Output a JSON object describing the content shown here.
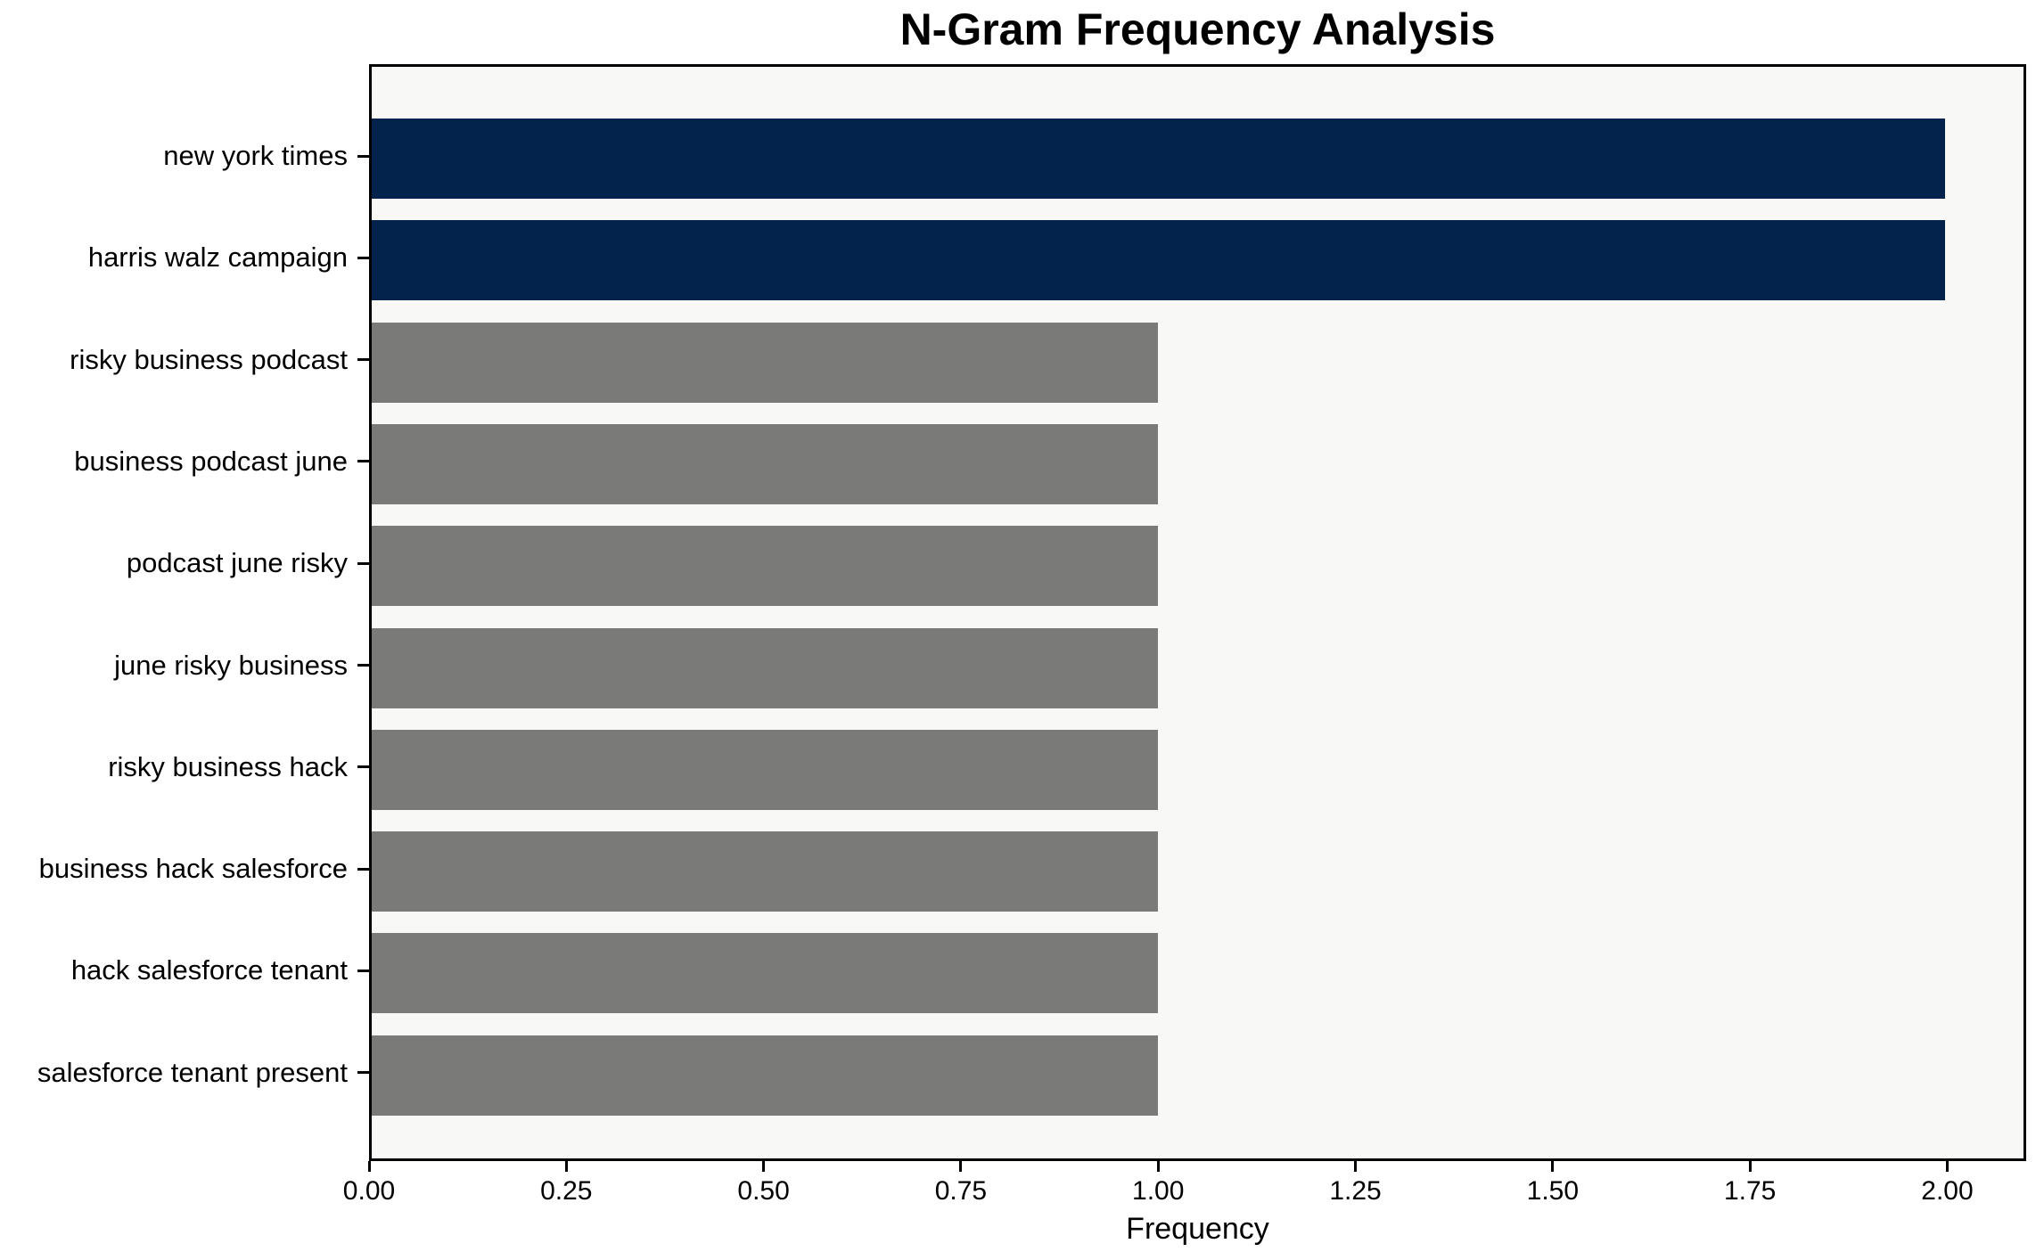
{
  "chart_data": {
    "type": "bar",
    "orientation": "horizontal",
    "title": "N-Gram Frequency Analysis",
    "xlabel": "Frequency",
    "ylabel": "",
    "categories": [
      "new york times",
      "harris walz campaign",
      "risky business podcast",
      "business podcast june",
      "podcast june risky",
      "june risky business",
      "risky business hack",
      "business hack salesforce",
      "hack salesforce tenant",
      "salesforce tenant present"
    ],
    "values": [
      2,
      2,
      1,
      1,
      1,
      1,
      1,
      1,
      1,
      1
    ],
    "bar_colors": [
      "#04234c",
      "#04234c",
      "#7a7a78",
      "#7a7a78",
      "#7a7a78",
      "#7a7a78",
      "#7a7a78",
      "#7a7a78",
      "#7a7a78",
      "#7a7a78"
    ],
    "xlim": [
      0,
      2.1
    ],
    "xticks": [
      0,
      0.25,
      0.5,
      0.75,
      1.0,
      1.25,
      1.5,
      1.75,
      2.0
    ],
    "xtick_labels": [
      "0.00",
      "0.25",
      "0.50",
      "0.75",
      "1.00",
      "1.25",
      "1.50",
      "1.75",
      "2.00"
    ],
    "grid": false,
    "legend": null,
    "plot_background": "#f8f8f7",
    "figure_background": "#ffffff",
    "highlight_color": "#04234c",
    "default_color": "#7a7a78"
  }
}
